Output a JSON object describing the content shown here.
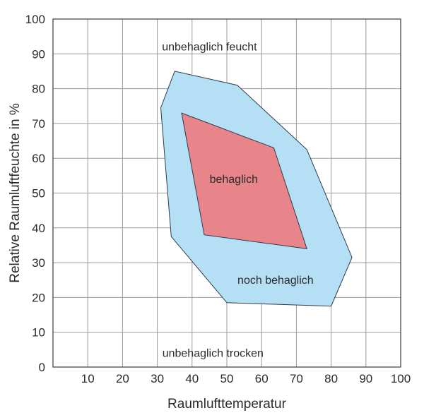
{
  "chart_data": {
    "type": "area",
    "xlabel": "Raumlufttemperatur",
    "ylabel": "Relative Raumluftfeuchte in %",
    "xlim": [
      0,
      100
    ],
    "ylim": [
      0,
      100
    ],
    "x_ticks": [
      "10",
      "20",
      "30",
      "40",
      "50",
      "60",
      "70",
      "80",
      "90",
      "100"
    ],
    "y_ticks": [
      "0",
      "10",
      "20",
      "30",
      "40",
      "50",
      "60",
      "70",
      "80",
      "90",
      "100"
    ],
    "grid": true,
    "regions": [
      {
        "name": "noch behaglich",
        "color": "#b5dff5",
        "points": [
          [
            35,
            85
          ],
          [
            53,
            81
          ],
          [
            73,
            62.5
          ],
          [
            86,
            31.5
          ],
          [
            80,
            17.5
          ],
          [
            50,
            18.5
          ],
          [
            34,
            37.5
          ],
          [
            31,
            74.5
          ]
        ]
      },
      {
        "name": "behaglich",
        "color": "#e8858a",
        "points": [
          [
            37,
            73
          ],
          [
            63.5,
            63
          ],
          [
            73,
            34
          ],
          [
            43.5,
            38
          ]
        ]
      }
    ],
    "annotations": [
      {
        "text": "unbehaglich feucht",
        "x": 45,
        "y": 92
      },
      {
        "text": "behaglich",
        "x": 52,
        "y": 54
      },
      {
        "text": "noch behaglich",
        "x": 64,
        "y": 25
      },
      {
        "text": "unbehaglich trocken",
        "x": 46,
        "y": 4
      }
    ]
  }
}
